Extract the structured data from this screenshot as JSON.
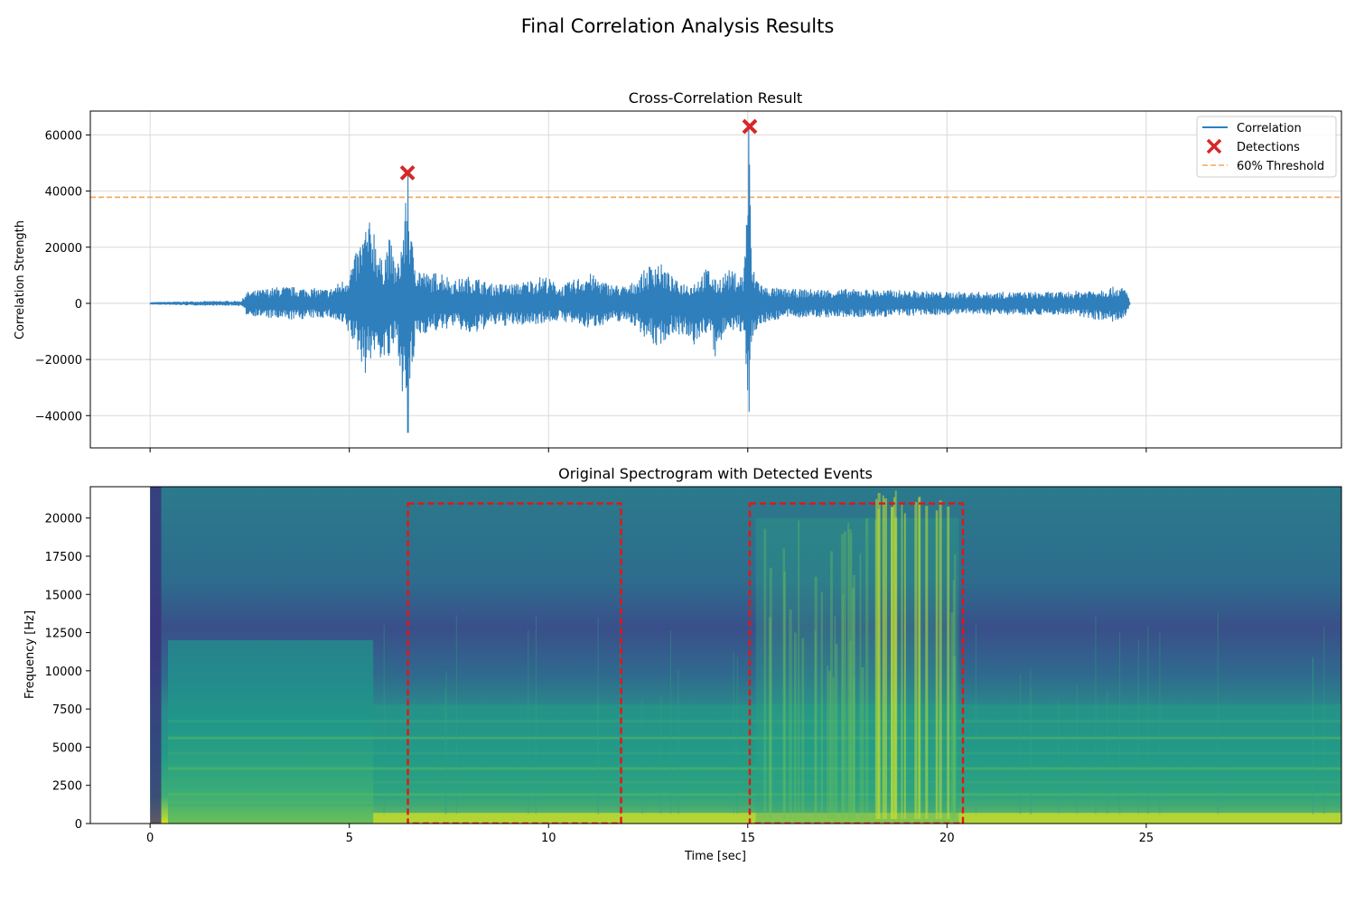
{
  "title": "Final Correlation Analysis Results",
  "colors": {
    "correlation": "#2f7fbd",
    "detection": "#d62728",
    "threshold": "#f5a55a",
    "box": "#ee1111",
    "grid": "#d9d9d9"
  },
  "chart_data": [
    {
      "type": "line",
      "title": "Cross-Correlation Result",
      "xlabel": "",
      "ylabel": "Correlation Strength",
      "xlim": [
        -1.5,
        29.9
      ],
      "ylim": [
        -51500,
        68500
      ],
      "grid": true,
      "legend": "upper right",
      "xticks": [
        0,
        5,
        10,
        15,
        20,
        25
      ],
      "xtick_labels": [
        "",
        "",
        "",
        "",
        "",
        ""
      ],
      "yticks": [
        -40000,
        -20000,
        0,
        20000,
        40000,
        60000
      ],
      "ytick_labels": [
        "−40000",
        "−20000",
        "0",
        "20000",
        "40000",
        "60000"
      ],
      "legend_labels": [
        "Correlation",
        "Detections",
        "60% Threshold"
      ],
      "series": [
        {
          "name": "Correlation",
          "envelope": {
            "x": [
              0,
              1,
              2.3,
              2.4,
              3.3,
              4.5,
              4.9,
              5.2,
              5.4,
              5.6,
              5.8,
              6.0,
              6.2,
              6.4,
              6.47,
              6.55,
              6.7,
              7.0,
              7.3,
              7.6,
              8.1,
              8.5,
              9.2,
              9.9,
              10.3,
              11.0,
              11.5,
              12.0,
              12.7,
              13.2,
              13.6,
              14.0,
              14.2,
              14.5,
              14.9,
              15.03,
              15.1,
              15.4,
              16,
              18,
              20,
              23,
              24.3,
              24.5,
              24.6
            ],
            "upper": [
              300,
              600,
              800,
              4000,
              6000,
              5000,
              9000,
              19000,
              28000,
              30000,
              15000,
              24000,
              12000,
              33000,
              46000,
              24000,
              14000,
              10000,
              12000,
              8000,
              10000,
              7000,
              7000,
              10000,
              6000,
              11000,
              7000,
              6000,
              16000,
              8000,
              7000,
              13000,
              8000,
              12000,
              10000,
              63000,
              13000,
              6000,
              5000,
              5000,
              4000,
              4000,
              6000,
              5000,
              0
            ],
            "lower": [
              -300,
              -600,
              -800,
              -4000,
              -6000,
              -5000,
              -9000,
              -17000,
              -25000,
              -18000,
              -20000,
              -21000,
              -14000,
              -41000,
              -46000,
              -28000,
              -12000,
              -10000,
              -10000,
              -8000,
              -12000,
              -8000,
              -8000,
              -7000,
              -6000,
              -9000,
              -7000,
              -6000,
              -16000,
              -10000,
              -16000,
              -10000,
              -21000,
              -8000,
              -12000,
              -38500,
              -12000,
              -7000,
              -5000,
              -5000,
              -4000,
              -4000,
              -7000,
              -5000,
              0
            ]
          }
        },
        {
          "name": "Detections",
          "x": [
            6.46,
            15.05
          ],
          "y": [
            46500,
            63000
          ]
        },
        {
          "name": "60% Threshold",
          "y": 37800
        }
      ]
    },
    {
      "type": "heatmap",
      "title": "Original Spectrogram with Detected Events",
      "xlabel": "Time [sec]",
      "ylabel": "Frequency [Hz]",
      "xlim": [
        -1.5,
        29.9
      ],
      "ylim": [
        0,
        22050
      ],
      "xticks": [
        0,
        5,
        10,
        15,
        20,
        25
      ],
      "xtick_labels": [
        "0",
        "5",
        "10",
        "15",
        "20",
        "25"
      ],
      "yticks": [
        0,
        2500,
        5000,
        7500,
        10000,
        12500,
        15000,
        17500,
        20000
      ],
      "ytick_labels": [
        "0",
        "2500",
        "5000",
        "7500",
        "10000",
        "12500",
        "15000",
        "17500",
        "20000"
      ],
      "data_extent": {
        "x": [
          0,
          29.9
        ],
        "y": [
          0,
          22050
        ]
      },
      "detected_events": [
        {
          "x0": 6.47,
          "x1": 11.82,
          "y0": 0,
          "y1": 20950
        },
        {
          "x0": 15.05,
          "x1": 20.4,
          "y0": 0,
          "y1": 20950
        }
      ]
    }
  ]
}
